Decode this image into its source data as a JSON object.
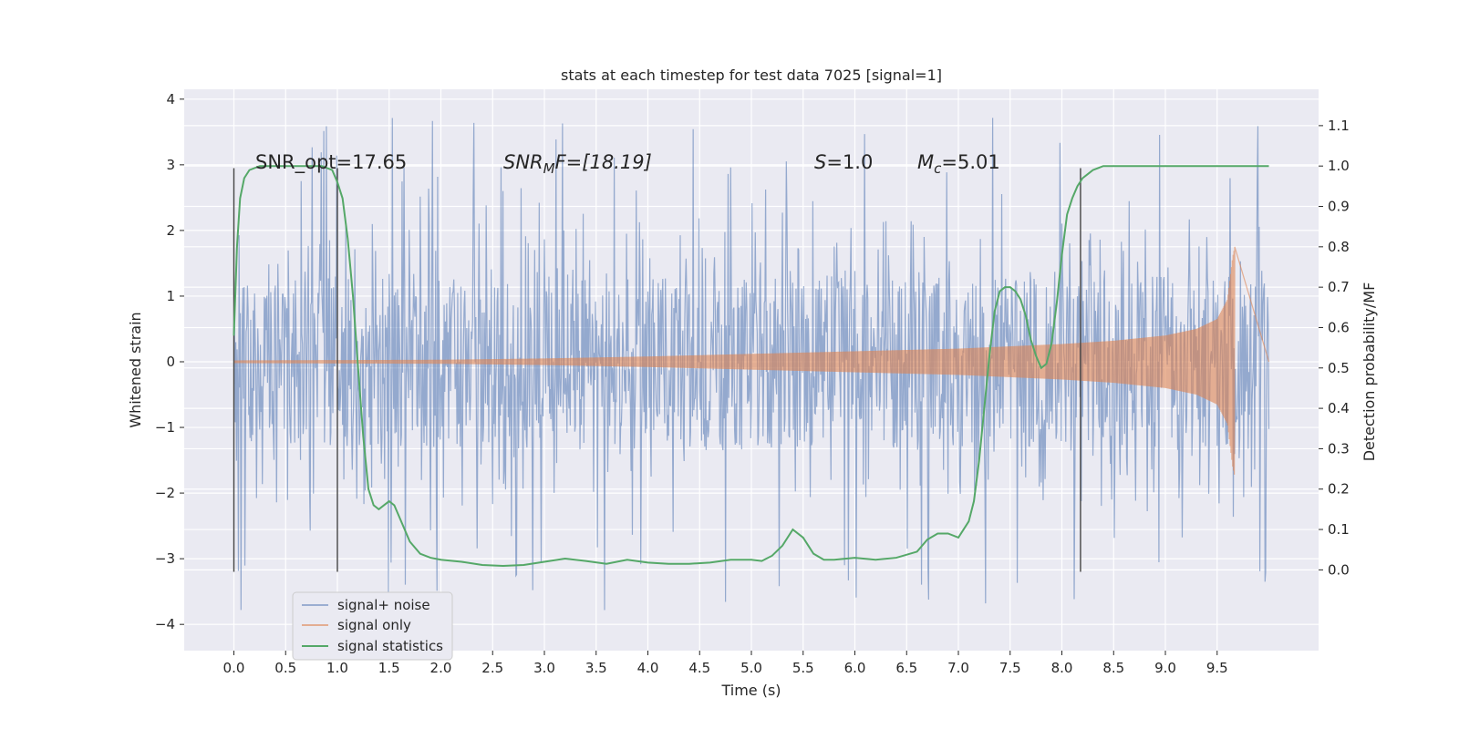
{
  "chart_data": {
    "type": "line",
    "title": "stats at each timestep for test data 7025 [signal=1]",
    "xlabel": "Time (s)",
    "ylabel": "Whitened strain",
    "y2label": "Detection probability/MF",
    "xlim": [
      -0.48,
      10.48
    ],
    "ylim": [
      -4.4,
      4.15
    ],
    "y2lim": [
      -0.2,
      1.19
    ],
    "xticks": [
      0.0,
      0.5,
      1.0,
      1.5,
      2.0,
      2.5,
      3.0,
      3.5,
      4.0,
      4.5,
      5.0,
      5.5,
      6.0,
      6.5,
      7.0,
      7.5,
      8.0,
      8.5,
      9.0,
      9.5
    ],
    "xtick_labels": [
      "0.0",
      "0.5",
      "1.0",
      "1.5",
      "2.0",
      "2.5",
      "3.0",
      "3.5",
      "4.0",
      "4.5",
      "5.0",
      "5.5",
      "6.0",
      "6.5",
      "7.0",
      "7.5",
      "8.0",
      "8.5",
      "9.0",
      "9.5"
    ],
    "yticks": [
      -4,
      -3,
      -2,
      -1,
      0,
      1,
      2,
      3,
      4
    ],
    "ytick_labels": [
      "−4",
      "−3",
      "−2",
      "−1",
      "0",
      "1",
      "2",
      "3",
      "4"
    ],
    "y2ticks": [
      0.0,
      0.1,
      0.2,
      0.3,
      0.4,
      0.5,
      0.6,
      0.7,
      0.8,
      0.9,
      1.0,
      1.1
    ],
    "y2tick_labels": [
      "0.0",
      "0.1",
      "0.2",
      "0.3",
      "0.4",
      "0.5",
      "0.6",
      "0.7",
      "0.8",
      "0.9",
      "1.0",
      "1.1"
    ],
    "grid": true,
    "legend_position": "lower-left",
    "legend": [
      "signal+ noise",
      "signal only",
      "signal statistics"
    ],
    "annotations": {
      "snr_opt": "SNR_opt=17.65",
      "snr_mf_pre": "SNR",
      "snr_mf_sub": "M",
      "snr_mf_post": "F=[18.19]",
      "s_pre": "S",
      "s_post": "=1.0",
      "mc_pre": "M",
      "mc_sub": "c",
      "mc_post": "=5.01"
    },
    "vertical_lines_x": [
      0.0,
      1.0,
      8.18
    ],
    "vertical_lines_yrange": [
      -3.2,
      2.95
    ],
    "noise": {
      "x_range": [
        0.0,
        10.0
      ],
      "core_amplitude": 1.3,
      "typical_peak": 2.2,
      "max_peak": 3.8,
      "min_trough": -3.8
    },
    "signal_only": {
      "x_range": [
        0.0,
        9.67
      ],
      "envelope_t": [
        0.0,
        2.0,
        3.0,
        4.0,
        5.0,
        6.0,
        7.0,
        8.0,
        8.5,
        9.0,
        9.3,
        9.5,
        9.6,
        9.65,
        9.67
      ],
      "envelope_amp": [
        0.02,
        0.03,
        0.05,
        0.08,
        0.12,
        0.16,
        0.2,
        0.27,
        0.32,
        0.4,
        0.5,
        0.65,
        0.95,
        1.6,
        1.75
      ]
    },
    "series": [
      {
        "name": "signal statistics",
        "axis": "right",
        "x": [
          0.0,
          0.03,
          0.06,
          0.1,
          0.15,
          0.25,
          0.4,
          0.55,
          0.7,
          0.85,
          0.95,
          1.0,
          1.05,
          1.1,
          1.15,
          1.2,
          1.25,
          1.3,
          1.35,
          1.4,
          1.45,
          1.5,
          1.55,
          1.6,
          1.7,
          1.8,
          1.9,
          2.0,
          2.2,
          2.4,
          2.6,
          2.8,
          3.0,
          3.2,
          3.4,
          3.6,
          3.8,
          4.0,
          4.2,
          4.4,
          4.6,
          4.8,
          5.0,
          5.1,
          5.2,
          5.3,
          5.4,
          5.5,
          5.6,
          5.7,
          5.8,
          6.0,
          6.2,
          6.4,
          6.6,
          6.7,
          6.8,
          6.9,
          7.0,
          7.1,
          7.15,
          7.2,
          7.25,
          7.3,
          7.35,
          7.4,
          7.45,
          7.5,
          7.55,
          7.6,
          7.65,
          7.7,
          7.75,
          7.8,
          7.85,
          7.9,
          7.95,
          8.0,
          8.05,
          8.1,
          8.15,
          8.2,
          8.25,
          8.3,
          8.35,
          8.4,
          8.5,
          8.6,
          8.8,
          9.0,
          9.5,
          10.0
        ],
        "y": [
          0.58,
          0.8,
          0.92,
          0.97,
          0.99,
          1.0,
          1.0,
          1.0,
          1.0,
          1.0,
          0.99,
          0.96,
          0.92,
          0.82,
          0.68,
          0.5,
          0.33,
          0.2,
          0.16,
          0.15,
          0.16,
          0.17,
          0.16,
          0.13,
          0.07,
          0.04,
          0.03,
          0.025,
          0.02,
          0.012,
          0.01,
          0.012,
          0.02,
          0.028,
          0.022,
          0.015,
          0.025,
          0.018,
          0.015,
          0.015,
          0.018,
          0.025,
          0.025,
          0.022,
          0.035,
          0.06,
          0.1,
          0.08,
          0.04,
          0.025,
          0.025,
          0.03,
          0.025,
          0.03,
          0.045,
          0.075,
          0.09,
          0.09,
          0.08,
          0.12,
          0.17,
          0.27,
          0.4,
          0.53,
          0.64,
          0.69,
          0.7,
          0.7,
          0.69,
          0.67,
          0.63,
          0.57,
          0.53,
          0.5,
          0.51,
          0.56,
          0.66,
          0.78,
          0.88,
          0.92,
          0.95,
          0.97,
          0.98,
          0.99,
          0.995,
          1.0,
          1.0,
          1.0,
          1.0,
          1.0,
          1.0,
          1.0
        ]
      }
    ]
  }
}
